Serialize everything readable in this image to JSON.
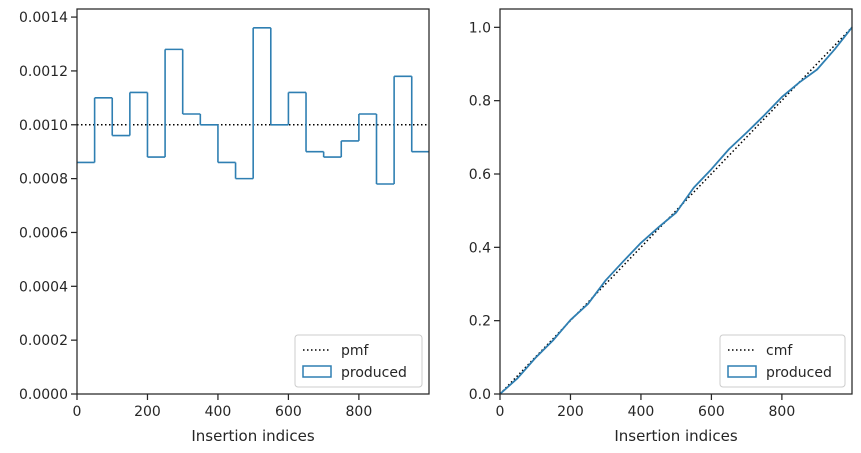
{
  "colors": {
    "series": "#2f7fb2",
    "reference": "#000000",
    "axes": "#262626"
  },
  "chart_data": [
    {
      "type": "histogram-step",
      "xlabel": "Insertion indices",
      "ylabel": "",
      "xlim": [
        0,
        999
      ],
      "ylim": [
        0,
        0.00143
      ],
      "xticks": [
        0,
        200,
        400,
        600,
        800
      ],
      "yticks": [
        0.0,
        0.0002,
        0.0004,
        0.0006,
        0.0008,
        0.001,
        0.0012,
        0.0014
      ],
      "ytick_labels": [
        "0.0000",
        "0.0002",
        "0.0004",
        "0.0006",
        "0.0008",
        "0.0010",
        "0.0012",
        "0.0014"
      ],
      "reference": {
        "name": "pmf",
        "value": 0.001
      },
      "series": [
        {
          "name": "produced",
          "bin_edges": [
            0,
            50,
            100,
            150,
            200,
            250,
            300,
            350,
            400,
            450,
            500,
            550,
            600,
            650,
            700,
            750,
            800,
            850,
            900,
            950,
            999
          ],
          "values": [
            0.00086,
            0.0011,
            0.00096,
            0.00112,
            0.00088,
            0.00128,
            0.00104,
            0.001,
            0.00086,
            0.0008,
            0.00136,
            0.001,
            0.00112,
            0.0009,
            0.00088,
            0.00094,
            0.00104,
            0.00078,
            0.00118,
            0.0009
          ]
        }
      ],
      "legend": {
        "position": "lower-right",
        "entries": [
          "pmf",
          "produced"
        ]
      }
    },
    {
      "type": "line",
      "xlabel": "Insertion indices",
      "ylabel": "",
      "xlim": [
        0,
        999
      ],
      "ylim": [
        0,
        1.05
      ],
      "xticks": [
        0,
        200,
        400,
        600,
        800
      ],
      "yticks": [
        0.0,
        0.2,
        0.4,
        0.6,
        0.8,
        1.0
      ],
      "ytick_labels": [
        "0.0",
        "0.2",
        "0.4",
        "0.6",
        "0.8",
        "1.0"
      ],
      "reference": {
        "name": "cmf",
        "from": [
          0,
          0
        ],
        "to": [
          999,
          1.0
        ]
      },
      "series": [
        {
          "name": "produced",
          "x": [
            0,
            50,
            100,
            150,
            200,
            250,
            300,
            350,
            400,
            450,
            500,
            550,
            600,
            650,
            700,
            750,
            800,
            850,
            900,
            950,
            999
          ],
          "y": [
            0.0,
            0.043,
            0.098,
            0.146,
            0.202,
            0.246,
            0.31,
            0.362,
            0.412,
            0.455,
            0.495,
            0.563,
            0.613,
            0.668,
            0.713,
            0.76,
            0.81,
            0.85,
            0.885,
            0.94,
            1.0
          ]
        }
      ],
      "legend": {
        "position": "lower-right",
        "entries": [
          "cmf",
          "produced"
        ]
      }
    }
  ]
}
